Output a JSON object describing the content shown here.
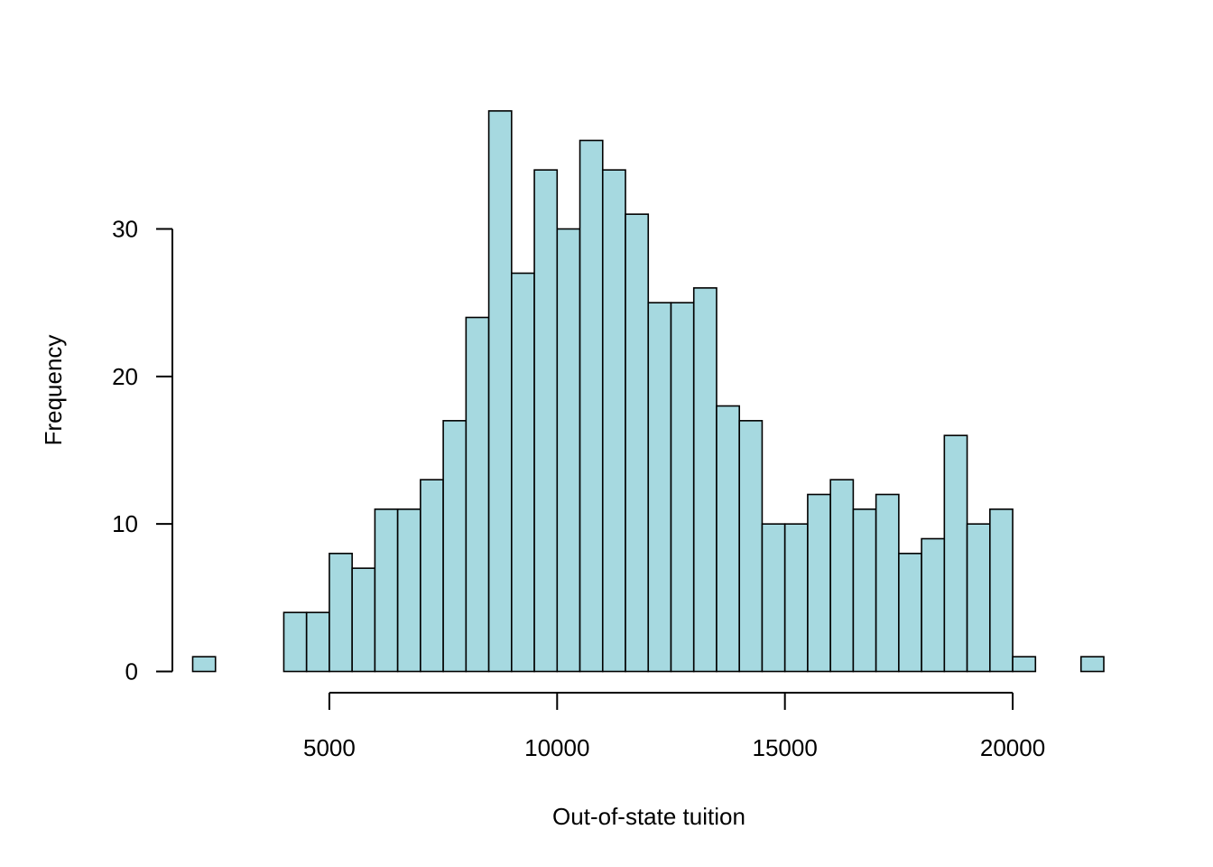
{
  "chart_data": {
    "type": "bar",
    "title": "",
    "xlabel": "Out-of-state tuition",
    "ylabel": "Frequency",
    "bin_width": 500,
    "x_start": 2000,
    "values": [
      1,
      0,
      0,
      0,
      4,
      4,
      8,
      7,
      11,
      11,
      13,
      17,
      24,
      38,
      27,
      34,
      30,
      36,
      34,
      31,
      25,
      25,
      26,
      18,
      17,
      10,
      10,
      12,
      13,
      11,
      12,
      8,
      9,
      16,
      10,
      11,
      1,
      0,
      0,
      1
    ],
    "xlim": [
      2000,
      22000
    ],
    "ylim": [
      0,
      38
    ],
    "x_ticks": [
      5000,
      10000,
      15000,
      20000
    ],
    "y_ticks": [
      0,
      10,
      20,
      30
    ],
    "bar_color": "#a6d9e0",
    "grid": false
  }
}
